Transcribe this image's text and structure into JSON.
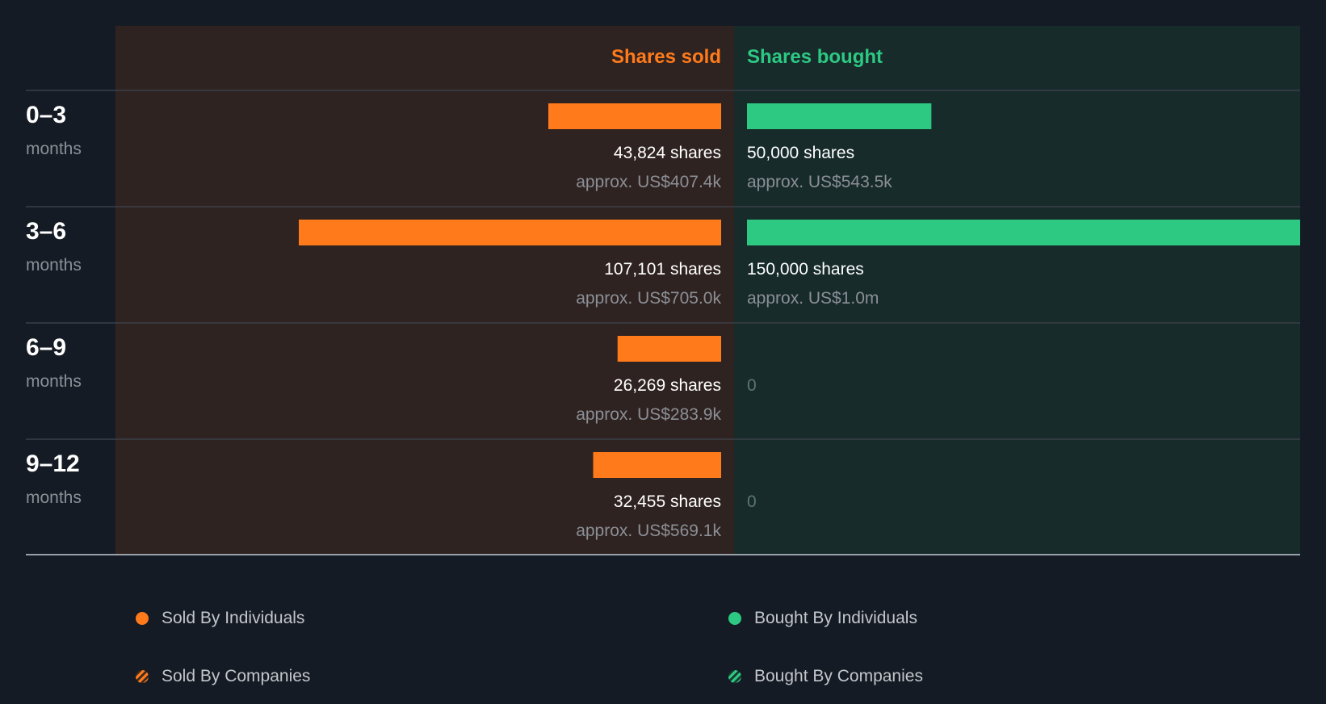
{
  "chart_data": {
    "type": "bar",
    "sold_title": "Shares sold",
    "bought_title": "Shares bought",
    "max_shares": 150000,
    "rows": [
      {
        "range": "0–3",
        "unit": "months",
        "sold_shares": 43824,
        "sold_label": "43,824 shares",
        "sold_value": "approx. US$407.4k",
        "bought_shares": 50000,
        "bought_label": "50,000 shares",
        "bought_value": "approx. US$543.5k"
      },
      {
        "range": "3–6",
        "unit": "months",
        "sold_shares": 107101,
        "sold_label": "107,101 shares",
        "sold_value": "approx. US$705.0k",
        "bought_shares": 150000,
        "bought_label": "150,000 shares",
        "bought_value": "approx. US$1.0m"
      },
      {
        "range": "6–9",
        "unit": "months",
        "sold_shares": 26269,
        "sold_label": "26,269 shares",
        "sold_value": "approx. US$283.9k",
        "bought_shares": 0,
        "bought_label": "0",
        "bought_value": ""
      },
      {
        "range": "9–12",
        "unit": "months",
        "sold_shares": 32455,
        "sold_label": "32,455 shares",
        "sold_value": "approx. US$569.1k",
        "bought_shares": 0,
        "bought_label": "0",
        "bought_value": ""
      }
    ],
    "legend": [
      {
        "label": "Sold By Individuals",
        "style": "solid-orange"
      },
      {
        "label": "Bought By Individuals",
        "style": "solid-green"
      },
      {
        "label": "Sold By Companies",
        "style": "hatch-orange"
      },
      {
        "label": "Bought By Companies",
        "style": "hatch-green"
      }
    ]
  },
  "colors": {
    "background": "#151b24",
    "sold_panel": "#2f2321",
    "bought_panel": "#172b2b",
    "sold_bar": "#ff7a1a",
    "bought_bar": "#2dc983",
    "text_primary": "#ffffff",
    "text_muted": "#8b8f96",
    "zero_text": "#5b7670"
  }
}
